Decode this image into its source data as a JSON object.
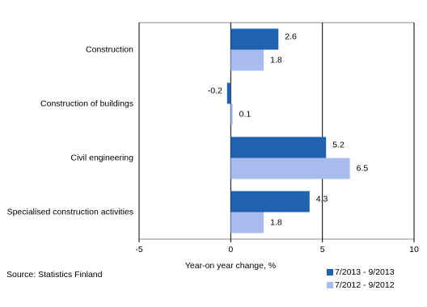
{
  "chart_data": {
    "type": "hbar",
    "categories": [
      "Construction",
      "Construction of buildings",
      "Civil engineering",
      "Specialised construction activities"
    ],
    "series": [
      {
        "name": "7/2013 - 9/2013",
        "color": "#1f62b0",
        "values": [
          2.6,
          -0.2,
          5.2,
          4.3
        ]
      },
      {
        "name": "7/2012 - 9/2012",
        "color": "#a8bdee",
        "values": [
          1.8,
          0.1,
          6.5,
          1.8
        ]
      }
    ],
    "xlim": [
      -5,
      10
    ],
    "xticks": [
      -5,
      0,
      5,
      10
    ],
    "x_label": "Year-on year change, %",
    "source": "Source: Statistics Finland",
    "grid": true
  }
}
